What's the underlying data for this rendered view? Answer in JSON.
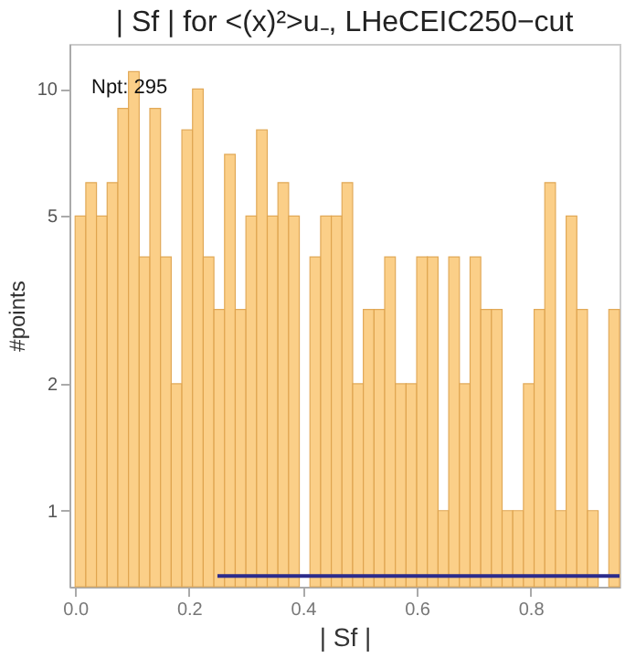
{
  "chart_data": {
    "type": "histogram",
    "title": "| Sf | for <(x)²>u₋, LHeCEIC250−cut",
    "xlabel": "| Sf |",
    "ylabel": "#points",
    "bins": [
      0,
      0.01875,
      0.0375,
      0.05625,
      0.075,
      0.09375,
      0.1125,
      0.13125,
      0.15,
      0.16875,
      0.1875,
      0.20625,
      0.225,
      0.24375,
      0.2625,
      0.28125,
      0.3,
      0.31875,
      0.3375,
      0.35625,
      0.375,
      0.39375,
      0.4125,
      0.43125,
      0.45,
      0.46875,
      0.4875,
      0.50625,
      0.525,
      0.54375,
      0.5625,
      0.58125,
      0.6,
      0.61875,
      0.6375,
      0.65625,
      0.675,
      0.69375,
      0.7125,
      0.73125,
      0.75,
      0.76875,
      0.7875,
      0.80625,
      0.825,
      0.84375,
      0.8625,
      0.88125,
      0.9,
      0.91875,
      0.9375,
      0.95625
    ],
    "values": [
      5,
      6,
      5,
      6,
      9,
      11,
      4,
      9,
      4,
      2,
      8,
      10,
      4,
      3,
      7,
      3,
      5,
      8,
      5,
      6,
      5,
      null,
      4,
      5,
      5,
      6,
      2,
      3,
      3,
      4,
      2,
      2,
      4,
      4,
      1,
      4,
      2,
      4,
      3,
      3,
      1,
      1,
      2,
      3,
      6,
      1,
      5,
      3,
      1,
      null,
      3
    ],
    "color": "#fbcd82",
    "series": [
      {
        "type": "line",
        "x": [
          0.25,
          0.95625
        ],
        "values": [
          0.7,
          0.7
        ],
        "color": "#2b2b8c"
      }
    ],
    "annotations": [
      "Npt: 295"
    ],
    "xlim": [
      -0.01,
      0.95625
    ],
    "ylim": [
      0.66,
      12.8
    ],
    "log": "y",
    "xticks": [
      {
        "value": 0,
        "label": "0.0"
      },
      0.2,
      0.4,
      0.6,
      0.8
    ],
    "yticks": [
      1,
      2,
      5,
      10
    ],
    "grid": false
  }
}
